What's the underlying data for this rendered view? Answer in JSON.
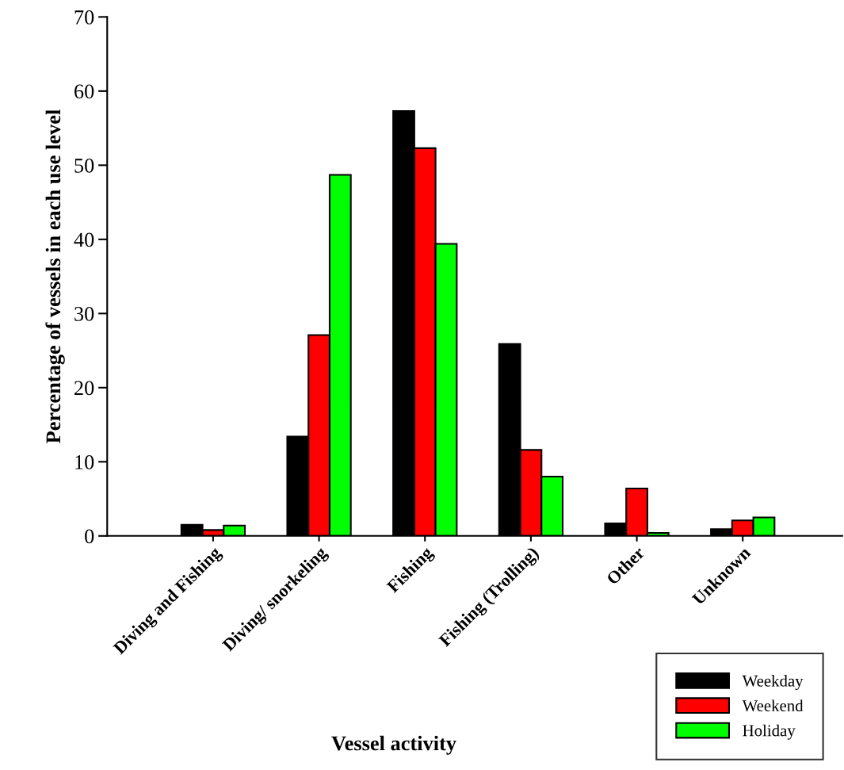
{
  "chart_data": {
    "type": "bar",
    "xlabel": "Vessel activity",
    "ylabel": "Percentage of vessels in each use level",
    "categories": [
      "Diving and Fishing",
      "Diving/ snorkeling",
      "Fishing",
      "Fishing (Trolling)",
      "Other",
      "Unknown"
    ],
    "series": [
      {
        "name": "Weekday",
        "color": "#000000",
        "values": [
          1.5,
          13.4,
          57.3,
          25.9,
          1.7,
          0.9
        ]
      },
      {
        "name": "Weekend",
        "color": "#ff0000",
        "values": [
          0.8,
          27.1,
          52.3,
          11.6,
          6.4,
          2.1
        ]
      },
      {
        "name": "Holiday",
        "color": "#00ff00",
        "values": [
          1.4,
          48.7,
          39.4,
          8.0,
          0.4,
          2.5
        ]
      }
    ],
    "ylim": [
      0,
      70
    ],
    "yticks": [
      0,
      10,
      20,
      30,
      40,
      50,
      60,
      70
    ],
    "grid": false,
    "legend": "bottom right"
  }
}
